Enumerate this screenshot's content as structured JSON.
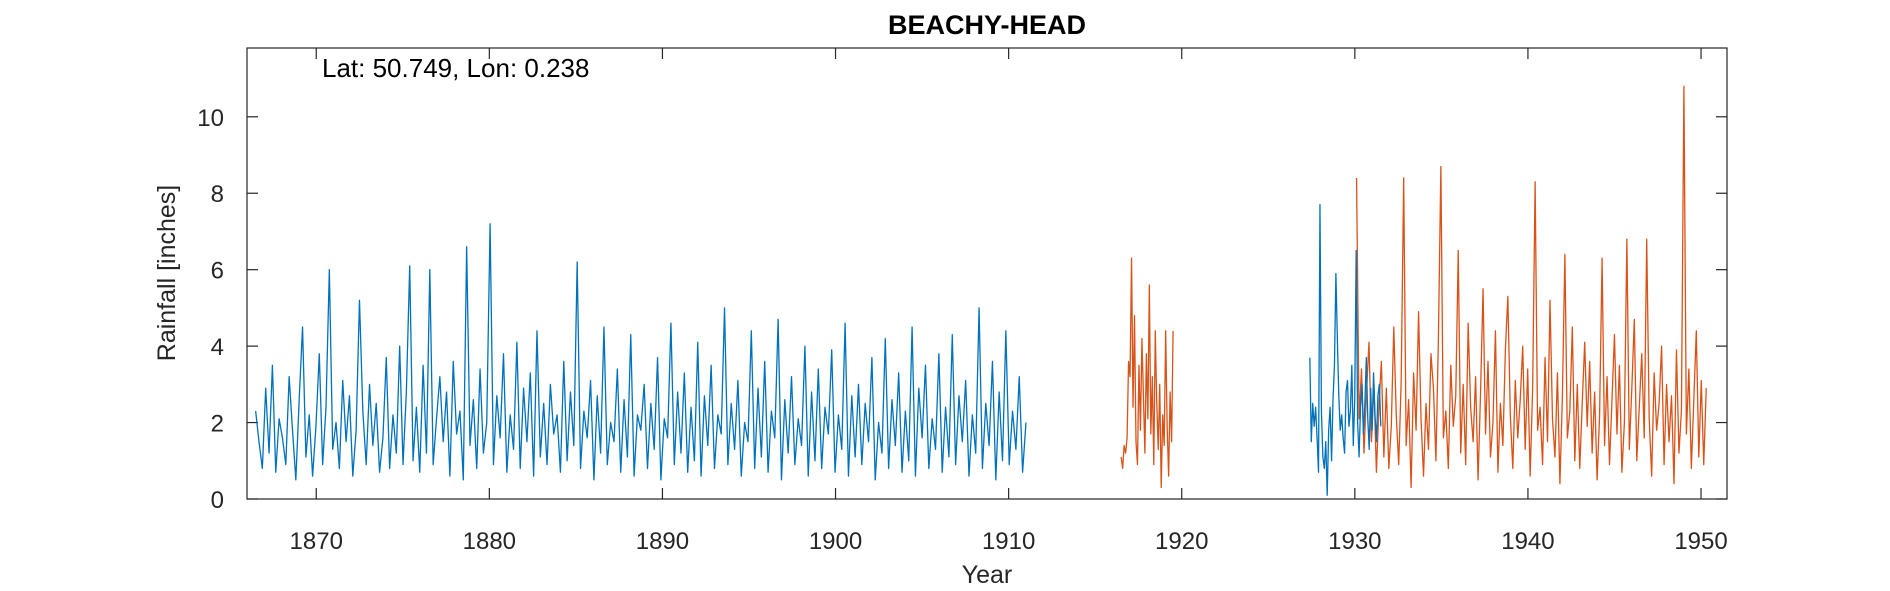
{
  "chart_data": {
    "type": "line",
    "title": "BEACHY-HEAD",
    "annotation": "Lat: 50.749, Lon: 0.238",
    "xlabel": "Year",
    "ylabel": "Rainfall [inches]",
    "xlim": [
      1866,
      1951.5
    ],
    "ylim": [
      0,
      11.8
    ],
    "xticks": [
      1870,
      1880,
      1890,
      1900,
      1910,
      1920,
      1930,
      1940,
      1950
    ],
    "xtick_labels": [
      "1870",
      "1880",
      "1890",
      "1900",
      "1910",
      "1920",
      "1930",
      "1940",
      "1950"
    ],
    "yticks": [
      0,
      2,
      4,
      6,
      8,
      10
    ],
    "ytick_labels": [
      "0",
      "2",
      "4",
      "6",
      "8",
      "10"
    ],
    "grid": false,
    "legend": "none",
    "colors": {
      "series1": "#0072BD",
      "series2": "#D95319",
      "axis": "#262626"
    },
    "series": [
      {
        "segments": [
          {
            "x_start": 1866.5,
            "x_end": 1911.0,
            "values": [
              2.3,
              1.5,
              0.8,
              2.9,
              1.2,
              3.5,
              0.7,
              2.1,
              1.6,
              0.9,
              3.2,
              1.8,
              0.5,
              2.6,
              4.5,
              1.1,
              2.2,
              0.6,
              1.9,
              3.8,
              0.9,
              2.4,
              6.0,
              1.3,
              2.0,
              0.8,
              3.1,
              1.5,
              2.7,
              0.6,
              1.8,
              5.2,
              2.3,
              0.9,
              3.0,
              1.4,
              2.5,
              0.7,
              1.6,
              3.7,
              0.8,
              2.2,
              1.2,
              4.0,
              0.9,
              2.8,
              6.1,
              1.0,
              2.4,
              0.7,
              3.5,
              1.2,
              6.0,
              0.9,
              2.1,
              3.2,
              1.5,
              2.8,
              0.6,
              3.6,
              1.7,
              2.3,
              0.5,
              6.6,
              1.4,
              2.6,
              0.8,
              3.4,
              1.2,
              2.0,
              7.2,
              0.9,
              2.7,
              1.6,
              3.8,
              0.7,
              2.2,
              1.3,
              4.1,
              0.8,
              2.9,
              1.5,
              3.3,
              0.6,
              4.4,
              1.1,
              2.5,
              0.9,
              3.0,
              1.7,
              2.2,
              0.7,
              3.6,
              1.0,
              2.8,
              1.4,
              6.2,
              0.8,
              2.3,
              1.6,
              3.1,
              0.5,
              2.7,
              1.2,
              4.5,
              0.9,
              2.0,
              1.5,
              3.4,
              0.7,
              2.6,
              1.1,
              4.3,
              0.6,
              2.2,
              1.8,
              3.0,
              0.8,
              2.5,
              1.3,
              3.7,
              0.5,
              2.1,
              1.6,
              4.6,
              0.9,
              2.8,
              1.2,
              3.3,
              0.7,
              2.4,
              1.0,
              4.1,
              0.6,
              2.7,
              1.4,
              3.5,
              0.8,
              2.2,
              1.7,
              5.0,
              0.9,
              2.5,
              1.3,
              3.1,
              0.6,
              2.0,
              1.5,
              4.4,
              0.8,
              2.9,
              1.1,
              3.6,
              0.7,
              2.3,
              1.6,
              4.7,
              0.5,
              2.6,
              1.2,
              3.2,
              0.9,
              2.1,
              1.4,
              4.0,
              0.6,
              2.8,
              1.0,
              3.4,
              0.8,
              2.4,
              1.7,
              3.9,
              0.7,
              2.2,
              1.3,
              4.6,
              0.6,
              2.7,
              1.1,
              3.0,
              0.9,
              2.5,
              1.5,
              3.7,
              0.5,
              2.0,
              1.2,
              4.2,
              0.8,
              2.6,
              1.4,
              3.3,
              0.7,
              2.3,
              1.0,
              4.5,
              0.6,
              2.9,
              1.6,
              3.5,
              0.8,
              2.1,
              1.3,
              3.8,
              0.7,
              2.4,
              1.1,
              4.3,
              0.9,
              2.7,
              1.5,
              3.1,
              0.6,
              2.2,
              1.2,
              5.0,
              0.8,
              2.5,
              1.4,
              3.6,
              0.5,
              2.8,
              1.0,
              4.4,
              0.9,
              2.3,
              1.3,
              3.2,
              0.7,
              2.0
            ]
          },
          {
            "x_start": 1927.4,
            "x_end": 1931.5,
            "values": [
              3.7,
              1.5,
              2.5,
              1.9,
              2.4,
              1.6,
              0.7,
              7.7,
              2.3,
              1.1,
              0.8,
              1.5,
              0.1,
              1.8,
              2.4,
              1.0,
              2.6,
              3.5,
              5.9,
              4.2,
              2.7,
              1.8,
              2.2,
              1.6,
              1.2,
              2.8,
              3.1,
              1.9,
              2.3,
              3.5,
              1.4,
              2.6,
              6.5,
              2.0,
              1.1,
              2.4,
              3.0,
              1.7,
              2.5,
              3.7,
              2.1,
              1.3,
              2.9,
              1.8,
              3.3,
              2.2,
              1.5,
              2.7,
              3.0,
              1.9
            ]
          }
        ]
      },
      {
        "segments": [
          {
            "x_start": 1916.5,
            "x_end": 1919.5,
            "values": [
              1.1,
              0.8,
              1.4,
              1.2,
              1.6,
              3.6,
              3.2,
              6.3,
              2.4,
              4.8,
              1.5,
              0.9,
              3.5,
              1.8,
              4.2,
              2.7,
              1.2,
              3.8,
              2.1,
              5.6,
              1.7,
              3.2,
              0.9,
              4.4,
              2.5,
              1.3,
              3.0,
              0.3,
              2.2,
              1.4,
              4.4,
              1.9,
              0.6,
              2.8,
              1.5,
              4.4
            ]
          },
          {
            "x_start": 1930.1,
            "x_end": 1950.3,
            "values": [
              8.4,
              2.1,
              3.4,
              1.2,
              2.8,
              4.1,
              1.5,
              3.0,
              0.7,
              2.4,
              3.6,
              1.1,
              2.9,
              0.8,
              1.9,
              4.5,
              2.2,
              0.9,
              3.1,
              8.4,
              1.4,
              2.6,
              0.3,
              3.3,
              1.8,
              4.9,
              2.1,
              0.6,
              2.5,
              1.3,
              3.8,
              2.9,
              1.0,
              4.2,
              8.7,
              1.6,
              2.3,
              0.8,
              3.5,
              1.9,
              2.7,
              6.5,
              1.2,
              3.0,
              0.9,
              4.6,
              2.4,
              1.5,
              3.2,
              0.5,
              2.8,
              5.5,
              1.7,
              3.6,
              1.1,
              2.0,
              4.4,
              0.7,
              2.5,
              1.4,
              3.9,
              5.3,
              2.2,
              0.8,
              3.1,
              1.6,
              2.6,
              4.0,
              1.3,
              3.4,
              0.6,
              2.9,
              8.3,
              1.8,
              2.4,
              0.9,
              3.7,
              1.5,
              5.2,
              2.1,
              1.1,
              3.3,
              0.4,
              2.7,
              6.4,
              1.6,
              2.3,
              4.5,
              1.0,
              3.0,
              0.8,
              2.5,
              4.1,
              1.9,
              3.6,
              1.2,
              2.8,
              0.5,
              2.2,
              6.3,
              1.4,
              3.2,
              0.9,
              2.6,
              4.3,
              1.7,
              3.5,
              0.7,
              2.0,
              6.8,
              1.3,
              2.9,
              4.7,
              1.0,
              2.4,
              3.8,
              1.6,
              6.8,
              2.1,
              0.6,
              3.3,
              1.8,
              2.5,
              4.0,
              0.9,
              3.0,
              1.5,
              2.7,
              0.4,
              3.9,
              1.2,
              2.3,
              10.8,
              1.7,
              3.4,
              0.8,
              2.6,
              4.4,
              1.1,
              3.1,
              0.9,
              2.9
            ]
          }
        ]
      }
    ]
  }
}
